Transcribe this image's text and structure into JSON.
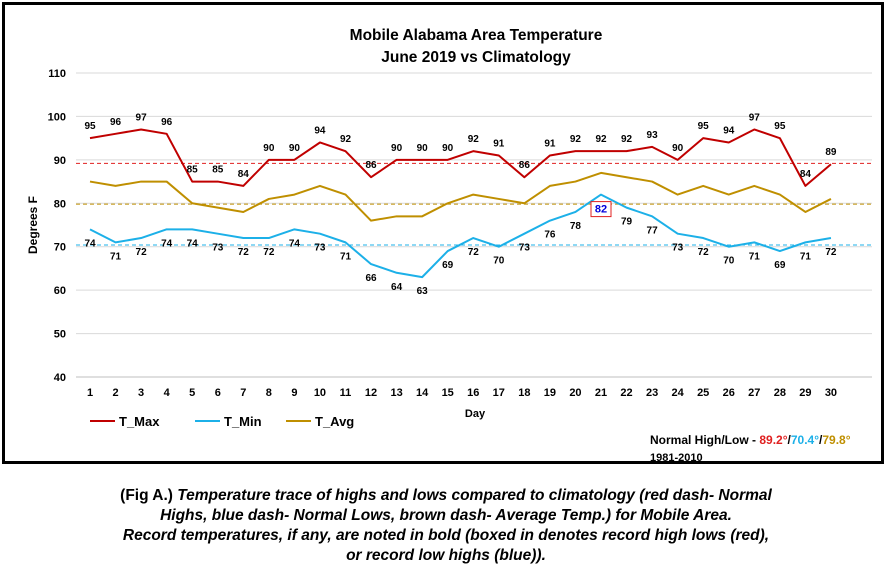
{
  "chart_data": {
    "type": "line",
    "title": "Mobile Alabama Area Temperature",
    "subtitle": "June 2019 vs Climatology",
    "xlabel": "Day",
    "ylabel": "Degrees F",
    "ylim": [
      40,
      110
    ],
    "yticks": [
      "40",
      "50",
      "60",
      "70",
      "80",
      "90",
      "100",
      "110"
    ],
    "x": [
      "1",
      "2",
      "3",
      "4",
      "5",
      "6",
      "7",
      "8",
      "9",
      "10",
      "11",
      "12",
      "13",
      "14",
      "15",
      "16",
      "17",
      "18",
      "19",
      "20",
      "21",
      "22",
      "23",
      "24",
      "25",
      "26",
      "27",
      "28",
      "29",
      "30"
    ],
    "grid": "horizontal",
    "legend_position": "bottom-left",
    "series": [
      {
        "name": "T_Max",
        "color": "#c00000",
        "labeled": true,
        "values": [
          95,
          96,
          97,
          96,
          85,
          85,
          84,
          90,
          90,
          94,
          92,
          86,
          90,
          90,
          90,
          92,
          91,
          86,
          91,
          92,
          92,
          92,
          93,
          90,
          95,
          94,
          97,
          95,
          84,
          89
        ]
      },
      {
        "name": "T_Min",
        "color": "#1cb0e8",
        "labeled": true,
        "values": [
          74,
          71,
          72,
          74,
          74,
          73,
          72,
          72,
          74,
          73,
          71,
          66,
          64,
          63,
          69,
          72,
          70,
          73,
          76,
          78,
          82,
          79,
          77,
          73,
          72,
          70,
          71,
          69,
          71,
          72
        ]
      },
      {
        "name": "T_Avg",
        "color": "#bf8f00",
        "labeled": false,
        "values": [
          85,
          84,
          85,
          85,
          80,
          79,
          78,
          81,
          82,
          84,
          82,
          76,
          77,
          77,
          80,
          82,
          81,
          80,
          84,
          85,
          87,
          86,
          85,
          82,
          84,
          82,
          84,
          82,
          78,
          81
        ]
      }
    ],
    "normals": [
      {
        "value": 89.2,
        "color": "#e02020"
      },
      {
        "value": 70.4,
        "color": "#1cb0e8"
      },
      {
        "value": 79.8,
        "color": "#bf8f00"
      }
    ],
    "record": {
      "series": "T_Min",
      "day": 21,
      "label": "82",
      "box_color": "#e02020",
      "text_color": "#0000dd"
    },
    "normal_note": {
      "prefix": "Normal High/Low - ",
      "high": "89.2°",
      "sep1": "/",
      "low": "70.4°",
      "sep2": "/",
      "avg": "79.8°",
      "period": "1981-2010"
    }
  },
  "caption": {
    "lead": "(Fig A.) ",
    "lines": [
      "Temperature trace of highs and lows compared to climatology (red dash- Normal",
      "Highs, blue dash- Normal Lows, brown dash- Average Temp.) for Mobile Area.",
      "Record temperatures, if any, are noted in bold (boxed in denotes record high lows (red),",
      "or record low highs (blue))."
    ]
  }
}
